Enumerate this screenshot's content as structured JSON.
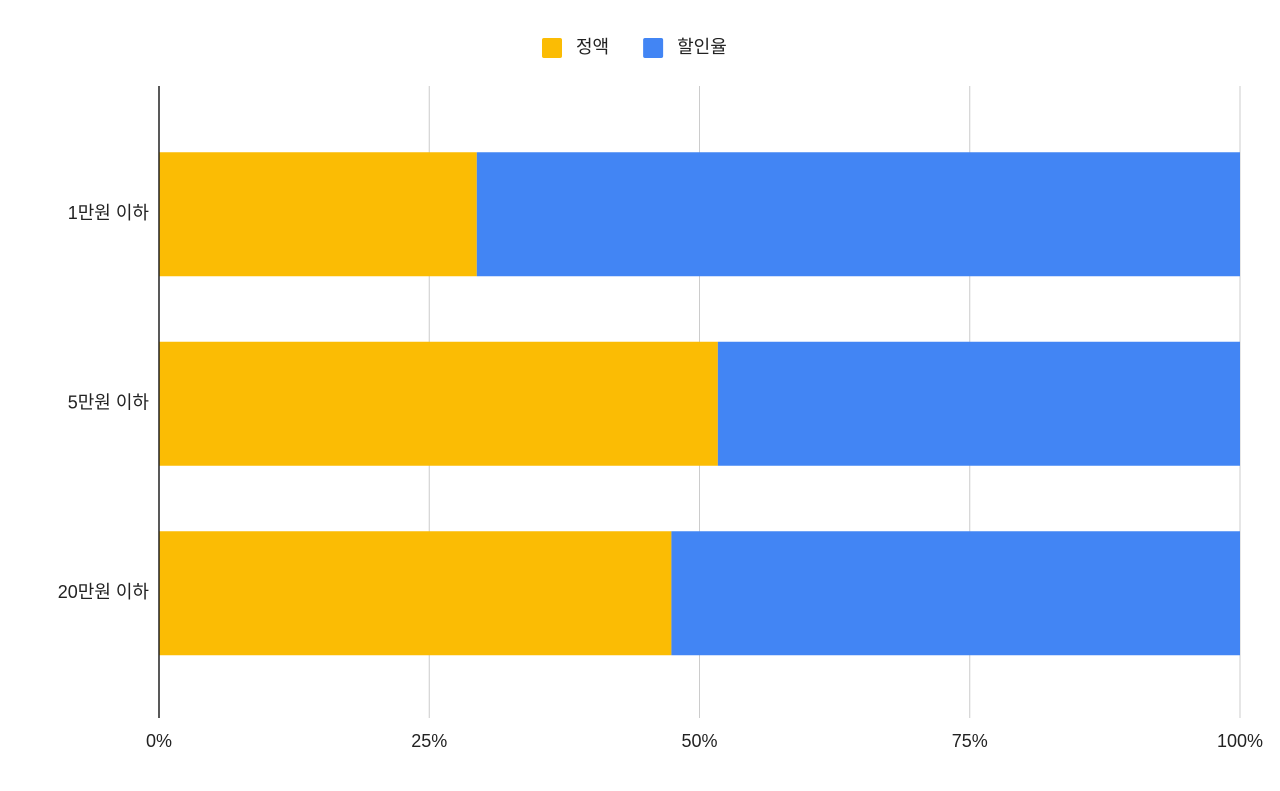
{
  "chart_data": {
    "type": "stacked-bar-horizontal",
    "categories": [
      "1만원 이하",
      "5만원 이하",
      "20만원 이하"
    ],
    "series": [
      {
        "name": "정액",
        "color": "#fbbc04",
        "values": [
          29.4,
          51.7,
          47.4
        ]
      },
      {
        "name": "할인율",
        "color": "#4285f4",
        "values": [
          70.6,
          48.3,
          52.6
        ]
      }
    ],
    "xlim": [
      0,
      100
    ],
    "xticks": [
      {
        "value": 0,
        "label": "0%"
      },
      {
        "value": 25,
        "label": "25%"
      },
      {
        "value": 50,
        "label": "50%"
      },
      {
        "value": 75,
        "label": "75%"
      },
      {
        "value": 100,
        "label": "100%"
      }
    ],
    "grid": true,
    "legend": "top"
  }
}
